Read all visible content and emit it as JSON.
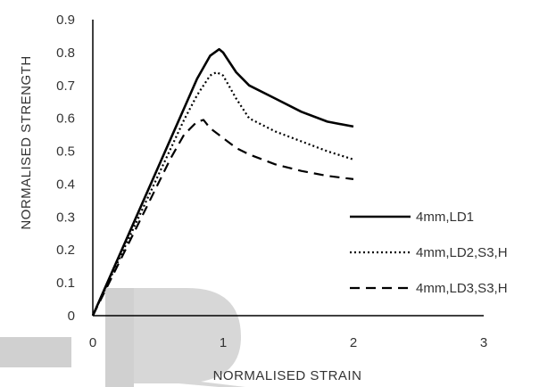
{
  "chart_data": {
    "type": "line",
    "title": "",
    "xlabel": "NORMALISED STRAIN",
    "ylabel": "NORMALISED STRENGTH",
    "xlim": [
      0,
      3
    ],
    "ylim": [
      0,
      0.9
    ],
    "xticks": [
      "0",
      "1",
      "2",
      "3"
    ],
    "yticks": [
      "0",
      "0.1",
      "0.2",
      "0.3",
      "0.4",
      "0.5",
      "0.6",
      "0.7",
      "0.8",
      "0.9"
    ],
    "grid": false,
    "legend_position": "right",
    "series": [
      {
        "name": "4mm,LD1",
        "style": "solid",
        "color": "#000000",
        "points": [
          [
            0,
            0
          ],
          [
            0.1,
            0.09
          ],
          [
            0.2,
            0.18
          ],
          [
            0.3,
            0.27
          ],
          [
            0.4,
            0.36
          ],
          [
            0.5,
            0.45
          ],
          [
            0.6,
            0.54
          ],
          [
            0.7,
            0.63
          ],
          [
            0.8,
            0.72
          ],
          [
            0.9,
            0.79
          ],
          [
            0.97,
            0.81
          ],
          [
            1.0,
            0.8
          ],
          [
            1.1,
            0.74
          ],
          [
            1.2,
            0.7
          ],
          [
            1.4,
            0.66
          ],
          [
            1.6,
            0.62
          ],
          [
            1.8,
            0.59
          ],
          [
            2.0,
            0.575
          ]
        ]
      },
      {
        "name": "4mm,LD2,S3,H",
        "style": "dotted",
        "color": "#000000",
        "points": [
          [
            0,
            0
          ],
          [
            0.1,
            0.085
          ],
          [
            0.2,
            0.17
          ],
          [
            0.3,
            0.255
          ],
          [
            0.4,
            0.34
          ],
          [
            0.5,
            0.425
          ],
          [
            0.6,
            0.51
          ],
          [
            0.7,
            0.595
          ],
          [
            0.8,
            0.67
          ],
          [
            0.9,
            0.73
          ],
          [
            0.95,
            0.74
          ],
          [
            1.0,
            0.73
          ],
          [
            1.1,
            0.66
          ],
          [
            1.2,
            0.6
          ],
          [
            1.4,
            0.56
          ],
          [
            1.6,
            0.53
          ],
          [
            1.8,
            0.5
          ],
          [
            2.0,
            0.475
          ]
        ]
      },
      {
        "name": "4mm,LD3,S3,H",
        "style": "dashed",
        "color": "#000000",
        "points": [
          [
            0,
            0
          ],
          [
            0.1,
            0.08
          ],
          [
            0.2,
            0.16
          ],
          [
            0.3,
            0.24
          ],
          [
            0.4,
            0.32
          ],
          [
            0.5,
            0.4
          ],
          [
            0.6,
            0.48
          ],
          [
            0.7,
            0.55
          ],
          [
            0.8,
            0.59
          ],
          [
            0.85,
            0.595
          ],
          [
            0.9,
            0.57
          ],
          [
            1.0,
            0.54
          ],
          [
            1.1,
            0.51
          ],
          [
            1.2,
            0.49
          ],
          [
            1.4,
            0.46
          ],
          [
            1.6,
            0.44
          ],
          [
            1.8,
            0.425
          ],
          [
            2.0,
            0.415
          ]
        ]
      }
    ],
    "watermark_color": "#d0d0d0"
  }
}
